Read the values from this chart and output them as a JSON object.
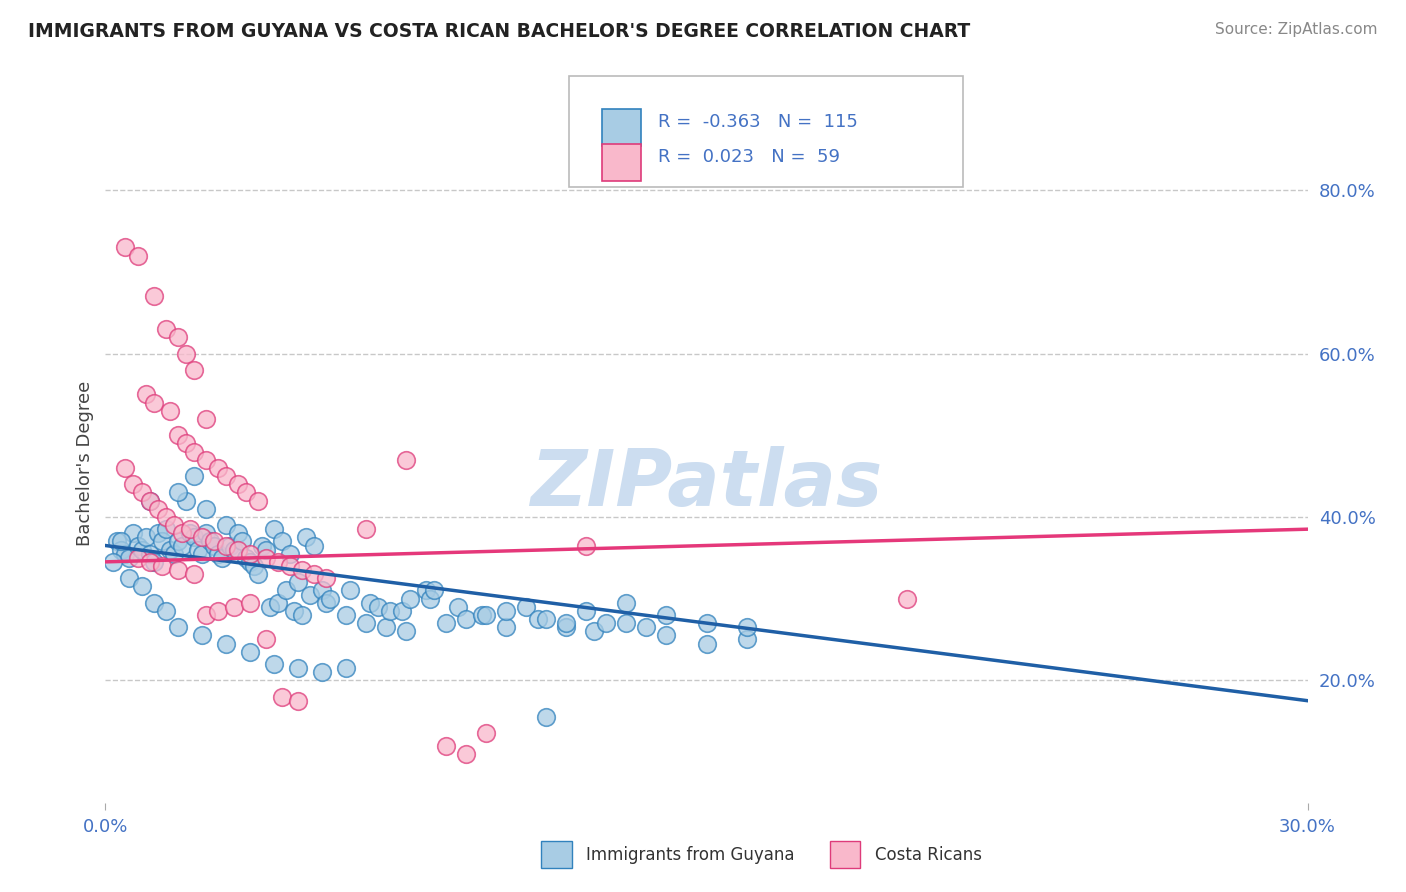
{
  "title": "IMMIGRANTS FROM GUYANA VS COSTA RICAN BACHELOR'S DEGREE CORRELATION CHART",
  "source": "Source: ZipAtlas.com",
  "ylabel": "Bachelor's Degree",
  "ytick_labels": [
    "20.0%",
    "40.0%",
    "60.0%",
    "80.0%"
  ],
  "ytick_positions": [
    0.2,
    0.4,
    0.6,
    0.8
  ],
  "xtick_labels": [
    "0.0%",
    "30.0%"
  ],
  "xtick_positions": [
    0.0,
    0.3
  ],
  "xrange": [
    0.0,
    0.3
  ],
  "yrange": [
    0.05,
    0.88
  ],
  "legend_blue_r": "-0.363",
  "legend_blue_n": "115",
  "legend_pink_r": "0.023",
  "legend_pink_n": "59",
  "legend_label_blue": "Immigrants from Guyana",
  "legend_label_pink": "Costa Ricans",
  "watermark": "ZIPatlas",
  "blue_dot_color": "#a8cce4",
  "blue_dot_edge": "#3182bd",
  "pink_dot_color": "#f9b8cb",
  "pink_dot_edge": "#de3b7a",
  "blue_line_color": "#1f5fa6",
  "pink_line_color": "#e5387a",
  "grid_color": "#c8c8c8",
  "title_color": "#222222",
  "tick_color": "#4472c4",
  "source_color": "#888888",
  "bg_color": "#ffffff",
  "blue_line_x": [
    0.0,
    0.3
  ],
  "blue_line_y": [
    0.365,
    0.175
  ],
  "pink_line_x": [
    0.0,
    0.3
  ],
  "pink_line_y": [
    0.345,
    0.385
  ],
  "blue_scatter": [
    [
      0.003,
      0.37
    ],
    [
      0.004,
      0.36
    ],
    [
      0.005,
      0.355
    ],
    [
      0.006,
      0.35
    ],
    [
      0.007,
      0.38
    ],
    [
      0.008,
      0.365
    ],
    [
      0.009,
      0.36
    ],
    [
      0.01,
      0.375
    ],
    [
      0.011,
      0.355
    ],
    [
      0.012,
      0.345
    ],
    [
      0.013,
      0.38
    ],
    [
      0.014,
      0.37
    ],
    [
      0.015,
      0.385
    ],
    [
      0.016,
      0.36
    ],
    [
      0.017,
      0.355
    ],
    [
      0.018,
      0.37
    ],
    [
      0.019,
      0.365
    ],
    [
      0.02,
      0.42
    ],
    [
      0.021,
      0.38
    ],
    [
      0.022,
      0.375
    ],
    [
      0.023,
      0.36
    ],
    [
      0.024,
      0.355
    ],
    [
      0.025,
      0.38
    ],
    [
      0.026,
      0.37
    ],
    [
      0.027,
      0.365
    ],
    [
      0.028,
      0.355
    ],
    [
      0.029,
      0.35
    ],
    [
      0.03,
      0.39
    ],
    [
      0.031,
      0.365
    ],
    [
      0.032,
      0.36
    ],
    [
      0.033,
      0.38
    ],
    [
      0.034,
      0.37
    ],
    [
      0.035,
      0.35
    ],
    [
      0.036,
      0.345
    ],
    [
      0.037,
      0.34
    ],
    [
      0.038,
      0.33
    ],
    [
      0.039,
      0.365
    ],
    [
      0.04,
      0.36
    ],
    [
      0.041,
      0.29
    ],
    [
      0.042,
      0.385
    ],
    [
      0.043,
      0.295
    ],
    [
      0.044,
      0.37
    ],
    [
      0.045,
      0.31
    ],
    [
      0.046,
      0.355
    ],
    [
      0.047,
      0.285
    ],
    [
      0.048,
      0.32
    ],
    [
      0.049,
      0.28
    ],
    [
      0.05,
      0.375
    ],
    [
      0.051,
      0.305
    ],
    [
      0.052,
      0.365
    ],
    [
      0.054,
      0.31
    ],
    [
      0.055,
      0.295
    ],
    [
      0.056,
      0.3
    ],
    [
      0.06,
      0.28
    ],
    [
      0.061,
      0.31
    ],
    [
      0.065,
      0.27
    ],
    [
      0.066,
      0.295
    ],
    [
      0.068,
      0.29
    ],
    [
      0.07,
      0.265
    ],
    [
      0.071,
      0.285
    ],
    [
      0.074,
      0.285
    ],
    [
      0.075,
      0.26
    ],
    [
      0.076,
      0.3
    ],
    [
      0.08,
      0.31
    ],
    [
      0.081,
      0.3
    ],
    [
      0.082,
      0.31
    ],
    [
      0.085,
      0.27
    ],
    [
      0.088,
      0.29
    ],
    [
      0.09,
      0.275
    ],
    [
      0.094,
      0.28
    ],
    [
      0.095,
      0.28
    ],
    [
      0.1,
      0.265
    ],
    [
      0.1,
      0.285
    ],
    [
      0.105,
      0.29
    ],
    [
      0.108,
      0.275
    ],
    [
      0.11,
      0.155
    ],
    [
      0.11,
      0.275
    ],
    [
      0.115,
      0.265
    ],
    [
      0.115,
      0.27
    ],
    [
      0.12,
      0.285
    ],
    [
      0.122,
      0.26
    ],
    [
      0.125,
      0.27
    ],
    [
      0.13,
      0.27
    ],
    [
      0.13,
      0.295
    ],
    [
      0.135,
      0.265
    ],
    [
      0.14,
      0.255
    ],
    [
      0.14,
      0.28
    ],
    [
      0.15,
      0.245
    ],
    [
      0.15,
      0.27
    ],
    [
      0.16,
      0.25
    ],
    [
      0.16,
      0.265
    ],
    [
      0.002,
      0.345
    ],
    [
      0.006,
      0.325
    ],
    [
      0.009,
      0.315
    ],
    [
      0.012,
      0.295
    ],
    [
      0.015,
      0.285
    ],
    [
      0.018,
      0.265
    ],
    [
      0.024,
      0.255
    ],
    [
      0.03,
      0.245
    ],
    [
      0.036,
      0.235
    ],
    [
      0.042,
      0.22
    ],
    [
      0.048,
      0.215
    ],
    [
      0.054,
      0.21
    ],
    [
      0.06,
      0.215
    ],
    [
      0.004,
      0.37
    ],
    [
      0.011,
      0.42
    ],
    [
      0.018,
      0.43
    ],
    [
      0.022,
      0.45
    ],
    [
      0.025,
      0.41
    ]
  ],
  "pink_scatter": [
    [
      0.005,
      0.73
    ],
    [
      0.008,
      0.72
    ],
    [
      0.012,
      0.67
    ],
    [
      0.015,
      0.63
    ],
    [
      0.018,
      0.62
    ],
    [
      0.02,
      0.6
    ],
    [
      0.022,
      0.58
    ],
    [
      0.025,
      0.52
    ],
    [
      0.01,
      0.55
    ],
    [
      0.012,
      0.54
    ],
    [
      0.016,
      0.53
    ],
    [
      0.018,
      0.5
    ],
    [
      0.02,
      0.49
    ],
    [
      0.022,
      0.48
    ],
    [
      0.025,
      0.47
    ],
    [
      0.028,
      0.46
    ],
    [
      0.03,
      0.45
    ],
    [
      0.033,
      0.44
    ],
    [
      0.035,
      0.43
    ],
    [
      0.038,
      0.42
    ],
    [
      0.005,
      0.46
    ],
    [
      0.007,
      0.44
    ],
    [
      0.009,
      0.43
    ],
    [
      0.011,
      0.42
    ],
    [
      0.013,
      0.41
    ],
    [
      0.015,
      0.4
    ],
    [
      0.017,
      0.39
    ],
    [
      0.019,
      0.38
    ],
    [
      0.021,
      0.385
    ],
    [
      0.024,
      0.375
    ],
    [
      0.027,
      0.37
    ],
    [
      0.03,
      0.365
    ],
    [
      0.033,
      0.36
    ],
    [
      0.036,
      0.355
    ],
    [
      0.04,
      0.35
    ],
    [
      0.043,
      0.345
    ],
    [
      0.046,
      0.34
    ],
    [
      0.049,
      0.335
    ],
    [
      0.052,
      0.33
    ],
    [
      0.055,
      0.325
    ],
    [
      0.008,
      0.35
    ],
    [
      0.011,
      0.345
    ],
    [
      0.014,
      0.34
    ],
    [
      0.018,
      0.335
    ],
    [
      0.022,
      0.33
    ],
    [
      0.025,
      0.28
    ],
    [
      0.028,
      0.285
    ],
    [
      0.032,
      0.29
    ],
    [
      0.036,
      0.295
    ],
    [
      0.04,
      0.25
    ],
    [
      0.044,
      0.18
    ],
    [
      0.048,
      0.175
    ],
    [
      0.065,
      0.385
    ],
    [
      0.12,
      0.365
    ],
    [
      0.2,
      0.3
    ],
    [
      0.075,
      0.47
    ],
    [
      0.085,
      0.12
    ],
    [
      0.09,
      0.11
    ],
    [
      0.095,
      0.135
    ]
  ]
}
